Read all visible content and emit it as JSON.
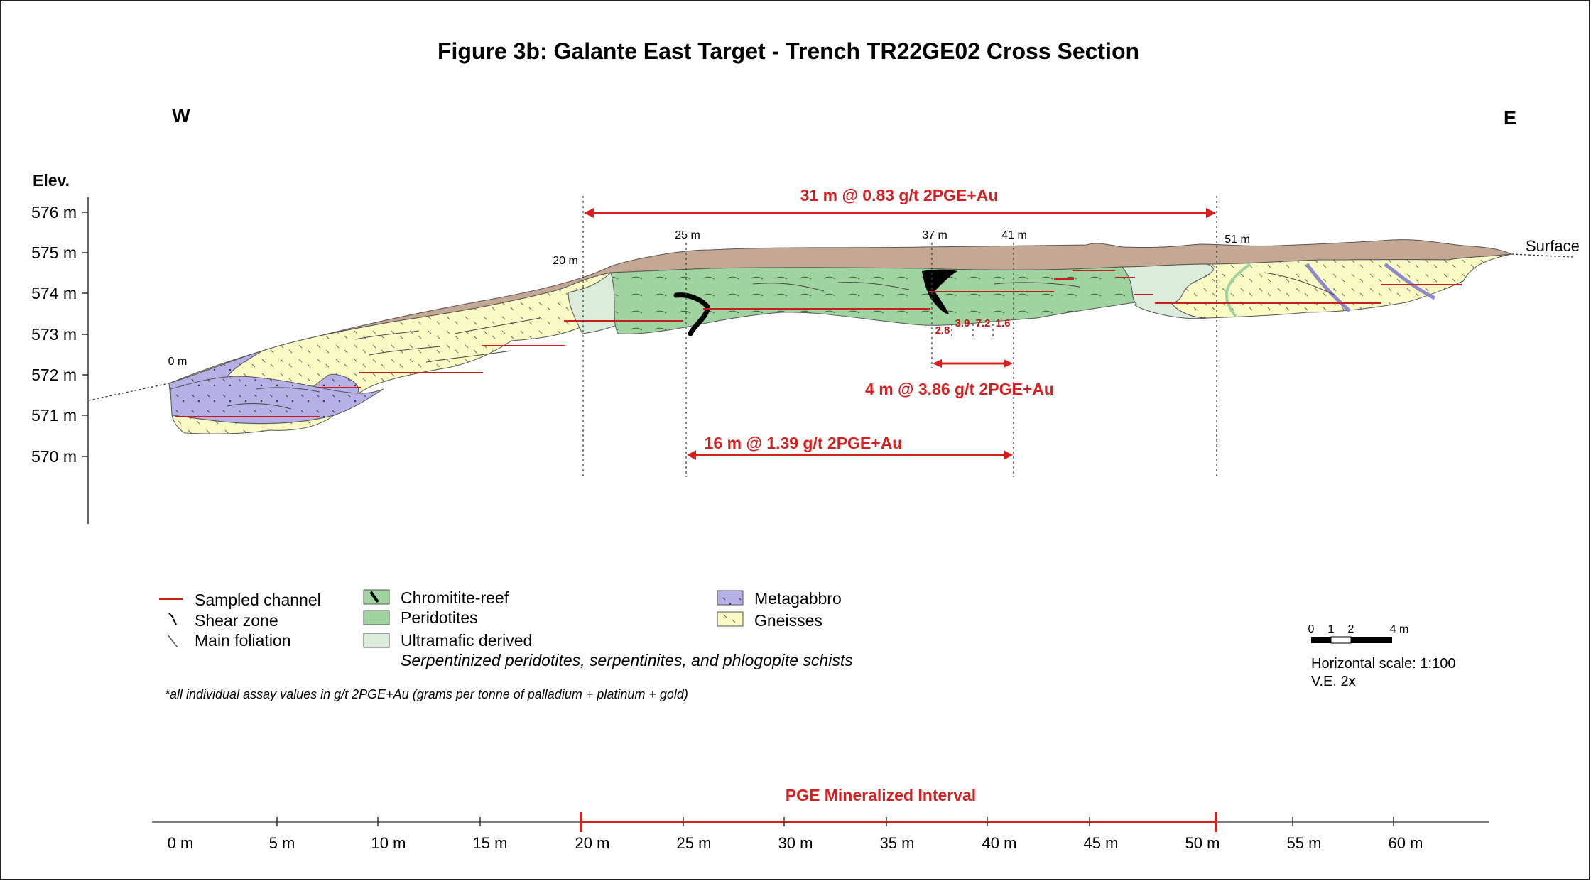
{
  "title": "Figure 3b: Galante East Target - Trench TR22GE02 Cross Section",
  "west_label": "W",
  "east_label": "E",
  "elevation_axis": {
    "label": "Elev.",
    "ticks": [
      "576 m",
      "575 m",
      "574 m",
      "573 m",
      "572 m",
      "571 m",
      "570 m"
    ]
  },
  "distance_markers": [
    "0 m",
    "20 m",
    "25 m",
    "37 m",
    "41 m",
    "51 m"
  ],
  "surface_label": "Surface",
  "intervals": [
    {
      "label": "31 m @ 0.83 g/t 2PGE+Au"
    },
    {
      "label": "4 m @ 3.86 g/t 2PGE+Au"
    },
    {
      "label": "16 m @ 1.39 g/t 2PGE+Au"
    }
  ],
  "assays": [
    "2.8",
    "3.9",
    "7.2",
    "1.6"
  ],
  "legend": {
    "sampled_channel": "Sampled channel",
    "shear_zone": "Shear zone",
    "main_foliation": "Main foliation",
    "chromitite": "Chromitite-reef",
    "peridotites": "Peridotites",
    "ultramafic": "Ultramafic derived",
    "ultramafic_desc": "Serpentinized peridotites, serpentinites, and phlogopite schists",
    "metagabbro": "Metagabbro",
    "gneisses": "Gneisses",
    "colors": {
      "overburden": "#c4a894",
      "peridotites": "#9fd4a0",
      "ultramafic": "#dcecdc",
      "metagabbro": "#b6b0e6",
      "gneisses": "#fafac4",
      "chromitite": "#000000",
      "channel": "#c81e1e"
    }
  },
  "footnote": "*all individual assay values in g/t 2PGE+Au (grams per tonne of palladium + platinum + gold)",
  "scale_bar": {
    "ticks": [
      "0",
      "1",
      "2",
      "4 m"
    ],
    "horizontal": "Horizontal scale: 1:100",
    "ve": "V.E. 2x"
  },
  "x_axis": {
    "interval_label": "PGE Mineralized Interval",
    "ticks": [
      "0 m",
      "5 m",
      "10 m",
      "15 m",
      "20 m",
      "25 m",
      "30 m",
      "35 m",
      "40 m",
      "45 m",
      "50 m",
      "55 m",
      "60 m"
    ]
  }
}
